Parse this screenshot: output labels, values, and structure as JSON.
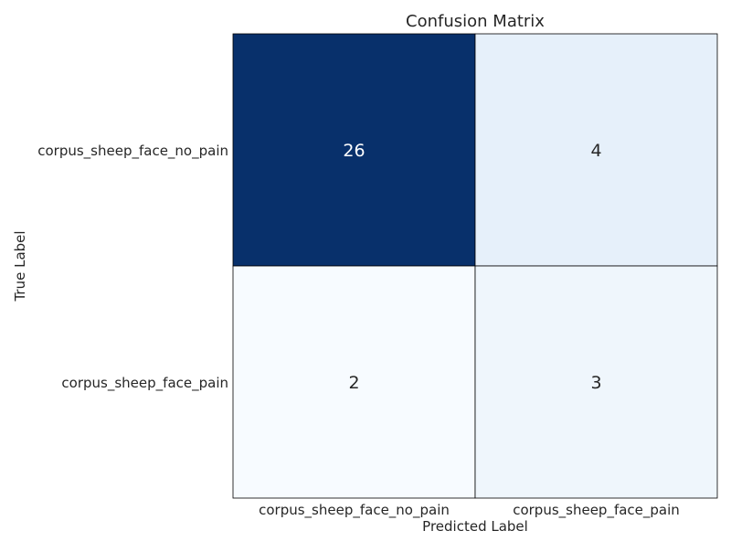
{
  "chart_data": {
    "type": "heatmap",
    "title": "Confusion Matrix",
    "xlabel": "Predicted Label",
    "ylabel": "True Label",
    "x_categories": [
      "corpus_sheep_face_no_pain",
      "corpus_sheep_face_pain"
    ],
    "y_categories": [
      "corpus_sheep_face_no_pain",
      "corpus_sheep_face_pain"
    ],
    "values": [
      [
        26,
        4
      ],
      [
        2,
        3
      ]
    ],
    "colormap": "Blues",
    "color_low": "#f7fbff",
    "color_high": "#08306b",
    "annotation_color_dark_cell": "#ffffff",
    "annotation_color_light_cell": "#262626",
    "grid_line_color": "#000000"
  }
}
